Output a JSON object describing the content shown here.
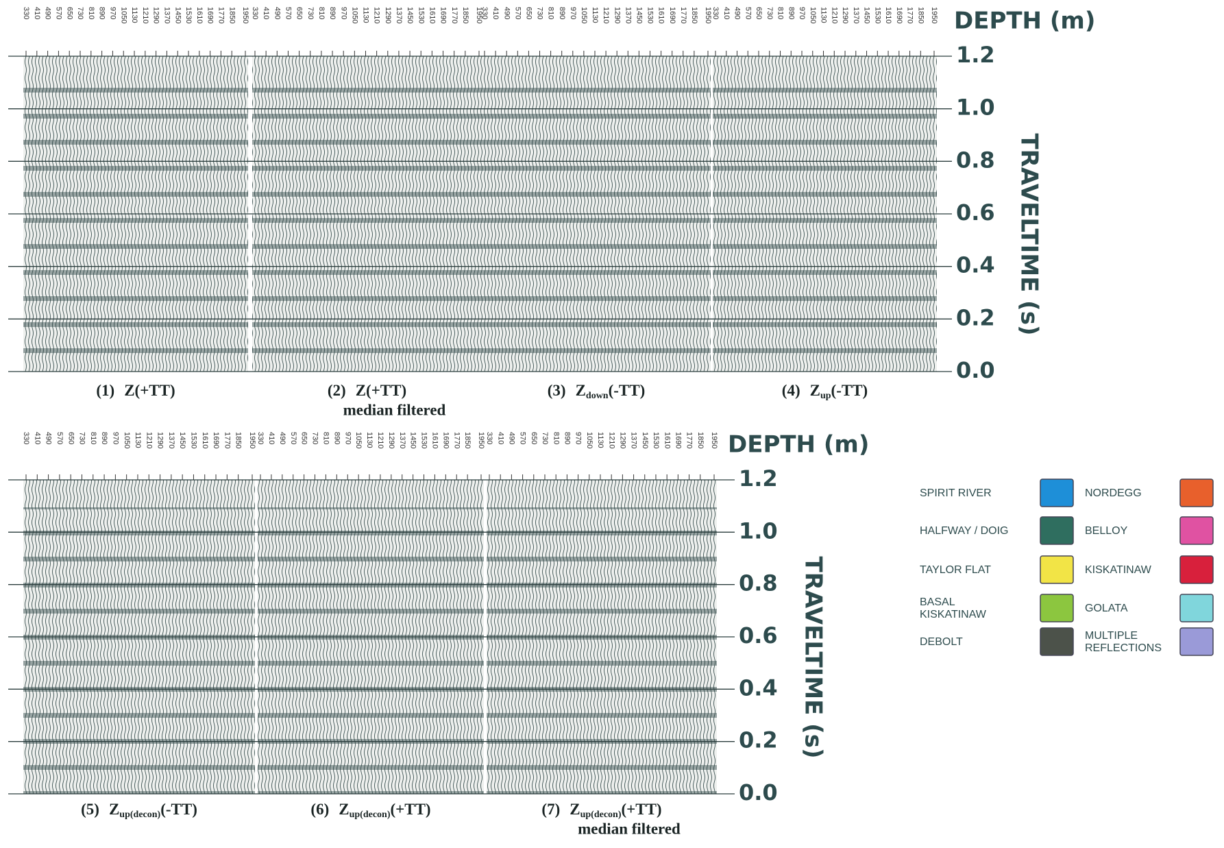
{
  "chart_data": [
    {
      "type": "seismic",
      "xlabel": "DEPTH (m)",
      "xlim": [
        330,
        1950
      ],
      "xticks": [
        330,
        410,
        490,
        570,
        650,
        730,
        810,
        890,
        970,
        1050,
        1130,
        1210,
        1290,
        1370,
        1450,
        1530,
        1610,
        1690,
        1770,
        1850,
        1950
      ],
      "ylabel": "TRAVELTIME (s)",
      "ylim": [
        0,
        1.2
      ],
      "yticks": [
        {
          "value": 0,
          "label": "0.0"
        },
        0.2,
        0.4,
        0.6,
        0.8,
        {
          "value": 1,
          "label": "1.0"
        },
        1.2
      ],
      "panels": [
        {
          "number": "(1)",
          "main": "Z(+TT)"
        },
        {
          "number": "(2)",
          "main": "Z(+TT)",
          "note": "median filtered"
        },
        {
          "number": "(3)",
          "main": "Z",
          "sub": "down",
          "tail": "(-TT)"
        },
        {
          "number": "(4)",
          "main": "Z",
          "sub": "up",
          "tail": "(-TT)"
        }
      ]
    },
    {
      "type": "seismic",
      "xlabel": "DEPTH (m)",
      "xlim": [
        330,
        1950
      ],
      "xticks": [
        330,
        410,
        490,
        570,
        650,
        730,
        810,
        890,
        970,
        1050,
        1130,
        1210,
        1290,
        1370,
        1450,
        1530,
        1610,
        1690,
        1770,
        1850,
        1950
      ],
      "ylabel": "TRAVELTIME (s)",
      "ylim": [
        0,
        1.2
      ],
      "yticks": [
        {
          "value": 0,
          "label": "0.0"
        },
        0.2,
        0.4,
        0.6,
        0.8,
        {
          "value": 1,
          "label": "1.0"
        },
        1.2
      ],
      "panels": [
        {
          "number": "(5)",
          "main": "Z",
          "sub": "up(decon)",
          "tail": "(-TT)"
        },
        {
          "number": "(6)",
          "main": "Z",
          "sub": "up(decon)",
          "tail": "(+TT)"
        },
        {
          "number": "(7)",
          "main": "Z",
          "sub": "up(decon)",
          "tail": "(+TT)",
          "note": "median filtered"
        }
      ]
    }
  ],
  "legend": [
    {
      "name": "SPIRIT RIVER",
      "color": "#1e8fd8"
    },
    {
      "name": "HALFWAY / DOIG",
      "color": "#2f6e5f"
    },
    {
      "name": "TAYLOR FLAT",
      "color": "#f2e446"
    },
    {
      "name": "BASAL\nKISKATINAW",
      "color": "#8cc63f"
    },
    {
      "name": "DEBOLT",
      "color": "#4c524a"
    },
    {
      "name": "NORDEGG",
      "color": "#e8602c"
    },
    {
      "name": "BELLOY",
      "color": "#e052a2"
    },
    {
      "name": "KISKATINAW",
      "color": "#d8203c"
    },
    {
      "name": "GOLATA",
      "color": "#80d6dc"
    },
    {
      "name": "MULTIPLE\nREFLECTIONS",
      "color": "#9a9ad8"
    }
  ]
}
